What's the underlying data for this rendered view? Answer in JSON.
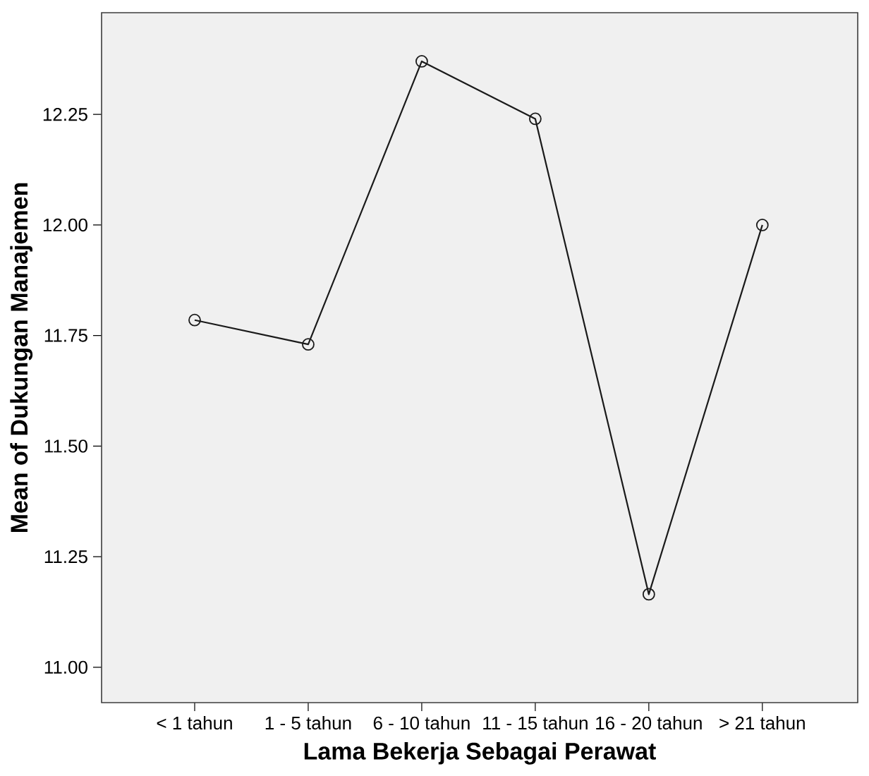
{
  "chart_data": {
    "type": "line",
    "xlabel": "Lama Bekerja Sebagai Perawat",
    "ylabel": "Mean of Dukungan Manajemen",
    "categories": [
      "< 1 tahun",
      "1 - 5 tahun",
      "6 - 10 tahun",
      "11 - 15 tahun",
      "16 - 20 tahun",
      "> 21 tahun"
    ],
    "series": [
      {
        "color": "#1a1a1a",
        "values": [
          11.785,
          11.73,
          12.37,
          12.24,
          11.165,
          12.0
        ]
      }
    ],
    "ylim": [
      10.92,
      12.48
    ],
    "yticks": [
      {
        "value": 11,
        "label": "11.00"
      },
      {
        "value": 11.25,
        "label": "11.25"
      },
      {
        "value": 11.5,
        "label": "11.50"
      },
      {
        "value": 11.75,
        "label": "11.75"
      },
      {
        "value": 12,
        "label": "12.00"
      },
      {
        "value": 12.25,
        "label": "12.25"
      }
    ],
    "marker": "circle",
    "line_style": "solid",
    "grid": false,
    "legend": false
  }
}
